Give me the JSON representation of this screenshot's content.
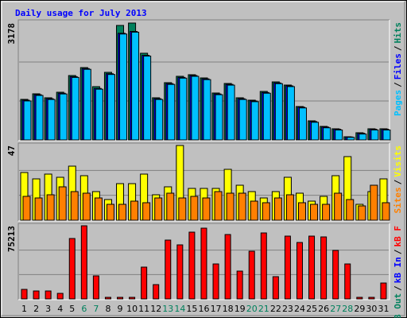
{
  "title": "Daily usage for July 2013",
  "legend_separator": "/",
  "weekend_days": [
    6,
    7,
    13,
    14,
    20,
    21,
    27,
    28
  ],
  "weekday_color": "#000000",
  "weekend_color": "#00805c",
  "chart_data": [
    {
      "type": "bar",
      "ylim": [
        0,
        3178
      ],
      "yticks": [
        3178
      ],
      "grid_divisions": 3,
      "series": [
        {
          "name": "Hits",
          "color": "#00805c",
          "values": [
            1103,
            1254,
            1146,
            1297,
            1751,
            1967,
            1449,
            1838,
            3113,
            3178,
            2357,
            1146,
            1557,
            1730,
            1773,
            1686,
            1276,
            1535,
            1146,
            1081,
            1319,
            1578,
            1492,
            908,
            519,
            368,
            303,
            86,
            195,
            303,
            303
          ]
        },
        {
          "name": "Files",
          "color": "#0000ff",
          "values": [
            1080,
            1230,
            1120,
            1270,
            1720,
            1940,
            1400,
            1800,
            2900,
            2950,
            2300,
            1120,
            1530,
            1700,
            1750,
            1660,
            1250,
            1510,
            1120,
            1060,
            1290,
            1550,
            1470,
            890,
            500,
            350,
            290,
            80,
            180,
            290,
            290
          ]
        },
        {
          "name": "Pages",
          "color": "#00c0ff",
          "values": [
            1060,
            1210,
            1100,
            1250,
            1700,
            1920,
            1380,
            1780,
            2880,
            2930,
            2280,
            1100,
            1510,
            1680,
            1730,
            1640,
            1230,
            1490,
            1100,
            1040,
            1270,
            1530,
            1450,
            870,
            480,
            330,
            270,
            70,
            160,
            270,
            270
          ]
        }
      ]
    },
    {
      "type": "bar",
      "ylim": [
        0,
        47
      ],
      "yticks": [
        47
      ],
      "grid_divisions": 3,
      "series": [
        {
          "name": "Visits",
          "color": "#ffff00",
          "values": [
            30,
            26,
            29,
            27,
            34,
            28,
            18,
            13,
            23,
            23,
            29,
            16,
            21,
            47,
            20,
            20,
            20,
            32,
            22,
            18,
            14,
            18,
            27,
            17,
            12,
            15,
            28,
            40,
            10,
            18,
            26
          ]
        },
        {
          "name": "Sites",
          "color": "#ff8000",
          "values": [
            15,
            14,
            16,
            21,
            18,
            17,
            14,
            10,
            10,
            12,
            11,
            14,
            17,
            14,
            15,
            14,
            18,
            17,
            17,
            12,
            11,
            14,
            16,
            11,
            10,
            10,
            17,
            13,
            9,
            22,
            11
          ]
        }
      ]
    },
    {
      "type": "bar",
      "ylim": [
        0,
        75213
      ],
      "yticks": [
        75213
      ],
      "grid_divisions": 3,
      "categories": [
        "1",
        "2",
        "3",
        "4",
        "5",
        "6",
        "7",
        "8",
        "9",
        "10",
        "11",
        "12",
        "13",
        "14",
        "15",
        "16",
        "17",
        "18",
        "19",
        "20",
        "21",
        "22",
        "23",
        "24",
        "25",
        "26",
        "27",
        "28",
        "29",
        "30",
        "31"
      ],
      "series": [
        {
          "name": "kB F",
          "color": "#ff0000",
          "values": [
            9810,
            8175,
            8175,
            5723,
            62130,
            75213,
            23708,
            1635,
            1635,
            1635,
            32700,
            14715,
            60495,
            55590,
            68670,
            72758,
            35970,
            66218,
            28613,
            49050,
            67853,
            22890,
            64583,
            58043,
            64583,
            63765,
            49868,
            35970,
            1635,
            1635,
            16350
          ]
        },
        {
          "name": "kB In",
          "color": "#0000ff"
        },
        {
          "name": "kB Out",
          "color": "#00805c"
        }
      ]
    }
  ]
}
